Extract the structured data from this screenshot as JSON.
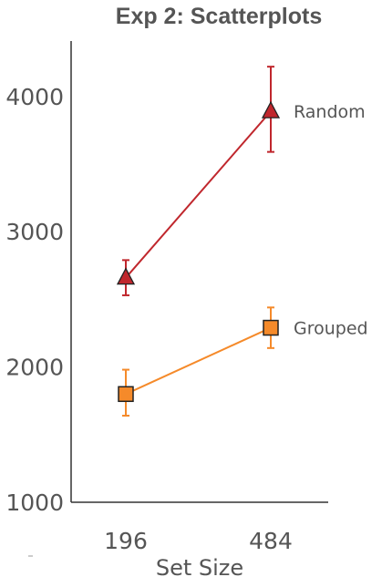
{
  "chart_data": {
    "type": "line",
    "title": "Exp 2: Scatterplots",
    "xlabel": "Set Size",
    "ylabel": "",
    "categories": [
      "196",
      "484"
    ],
    "ylim": [
      1000,
      4400
    ],
    "yticks": [
      "1000",
      "2000",
      "3000",
      "4000"
    ],
    "grid": false,
    "legend": "inline labels at right",
    "series": [
      {
        "name": "Random",
        "values": [
          2660,
          3890
        ],
        "error": [
          [
            2530,
            2790
          ],
          [
            3590,
            4220
          ]
        ],
        "color": "#c0272d",
        "marker": "triangle"
      },
      {
        "name": "Grouped",
        "values": [
          1800,
          2290
        ],
        "error": [
          [
            1640,
            1980
          ],
          [
            2140,
            2440
          ]
        ],
        "color": "#f58a2a",
        "marker": "square"
      }
    ]
  }
}
